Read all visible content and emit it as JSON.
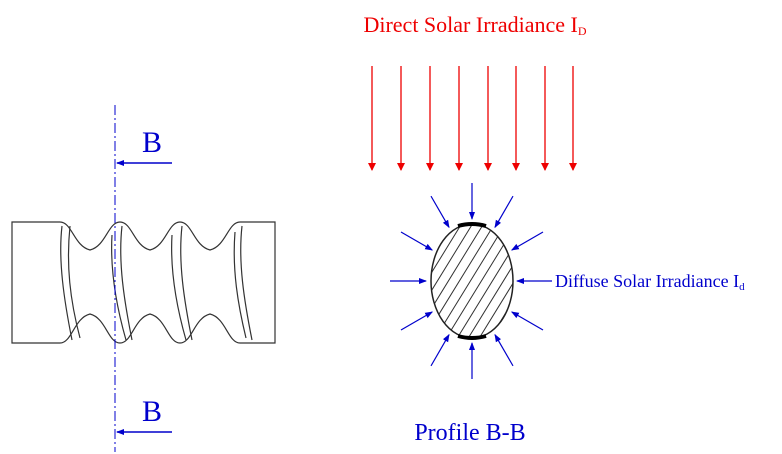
{
  "section_marks": {
    "top": "B",
    "bottom": "B"
  },
  "direct_label": {
    "text": "Direct Solar Irradiance I",
    "subscript": "D"
  },
  "diffuse_label": {
    "text": "Diffuse Solar Irradiance I",
    "subscript": "d"
  },
  "profile_label": "Profile B-B"
}
